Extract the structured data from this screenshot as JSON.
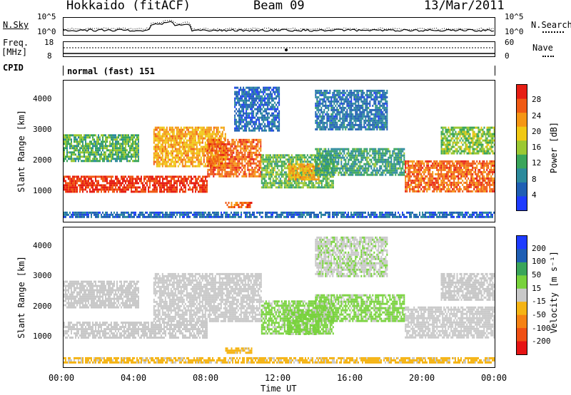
{
  "header": {
    "station": "Hokkaido (fitACF)",
    "beam": "Beam 09",
    "date": "13/Mar/2011"
  },
  "noise_panel": {
    "left_label": "N.Sky",
    "right_label": "N.Search",
    "left_ticks": [
      "10^5",
      "10^0"
    ],
    "right_ticks": [
      "10^5",
      "10^0"
    ]
  },
  "freq_panel": {
    "left_label": "Freq.",
    "left_unit": "[MHz]",
    "right_label": "Nave",
    "left_ticks": [
      "18",
      "8"
    ],
    "right_ticks": [
      "60",
      "0"
    ]
  },
  "cpid_panel": {
    "label": "CPID",
    "text": "normal (fast) 151"
  },
  "x_axis": {
    "label": "Time UT",
    "ticks": [
      "00:00",
      "04:00",
      "08:00",
      "12:00",
      "16:00",
      "20:00",
      "00:00"
    ]
  },
  "power_panel": {
    "ylabel": "Slant Range [km]",
    "yticks": [
      "1000",
      "2000",
      "3000",
      "4000"
    ],
    "colorbar_label": "Power [dB]",
    "colorbar_ticks": [
      "4",
      "8",
      "12",
      "16",
      "20",
      "24",
      "28"
    ]
  },
  "velocity_panel": {
    "ylabel": "Slant Range [km]",
    "yticks": [
      "1000",
      "2000",
      "3000",
      "4000"
    ],
    "colorbar_label": "Velocity [m s⁻¹]",
    "colorbar_ticks": [
      "200",
      "100",
      "50",
      "15",
      "-15",
      "-50",
      "-100",
      "-200"
    ]
  },
  "chart_data": [
    {
      "type": "heatmap",
      "title": "Power",
      "xlabel": "Time UT",
      "ylabel": "Slant Range [km]",
      "xlim": [
        0,
        24
      ],
      "ylim": [
        0,
        4600
      ],
      "colorbar": {
        "label": "Power [dB]",
        "range": [
          0,
          32
        ],
        "ticks": [
          4,
          8,
          12,
          16,
          20,
          24,
          28
        ],
        "colors": [
          "#1e3cff",
          "#1f5fb4",
          "#2c8a9c",
          "#3aa55a",
          "#9bc832",
          "#f0c814",
          "#f59614",
          "#f05a14",
          "#e61e14"
        ]
      },
      "regions": [
        {
          "t0": 0.0,
          "t1": 8.0,
          "r0": 950,
          "r1": 1500,
          "power": 29
        },
        {
          "t0": 0.0,
          "t1": 4.2,
          "r0": 1950,
          "r1": 2850,
          "power": 13
        },
        {
          "t0": 5.0,
          "t1": 9.0,
          "r0": 1800,
          "r1": 3100,
          "power": 22
        },
        {
          "t0": 8.0,
          "t1": 11.0,
          "r0": 1500,
          "r1": 2700,
          "power": 26
        },
        {
          "t0": 11.0,
          "t1": 15.0,
          "r0": 1100,
          "r1": 2200,
          "power": 14
        },
        {
          "t0": 12.5,
          "t1": 14.2,
          "r0": 1400,
          "r1": 1900,
          "power": 22
        },
        {
          "t0": 14.0,
          "t1": 19.0,
          "r0": 1500,
          "r1": 2400,
          "power": 11
        },
        {
          "t0": 14.0,
          "t1": 18.0,
          "r0": 3000,
          "r1": 4300,
          "power": 7
        },
        {
          "t0": 9.5,
          "t1": 12.0,
          "r0": 3000,
          "r1": 4400,
          "power": 6
        },
        {
          "t0": 19.0,
          "t1": 24.0,
          "r0": 1000,
          "r1": 2000,
          "power": 26
        },
        {
          "t0": 21.0,
          "t1": 24.0,
          "r0": 2200,
          "r1": 3100,
          "power": 15
        },
        {
          "t0": 9.0,
          "t1": 10.5,
          "r0": 500,
          "r1": 650,
          "power": 26
        },
        {
          "t0": 0.0,
          "t1": 24.0,
          "r0": 180,
          "r1": 330,
          "power": 6
        }
      ]
    },
    {
      "type": "heatmap",
      "title": "Velocity",
      "xlabel": "Time UT",
      "ylabel": "Slant Range [km]",
      "xlim": [
        0,
        24
      ],
      "ylim": [
        0,
        4600
      ],
      "colorbar": {
        "label": "Velocity [m s⁻¹]",
        "range": [
          -250,
          250
        ],
        "ticks": [
          200,
          100,
          50,
          15,
          -15,
          -50,
          -100,
          -200
        ],
        "colors": [
          "#1e3cff",
          "#1f5fb4",
          "#3aa55a",
          "#78d23c",
          "#c8c8c8",
          "#f5b414",
          "#f58214",
          "#f05014",
          "#e61414"
        ]
      },
      "regions": [
        {
          "t0": 0.0,
          "t1": 8.0,
          "r0": 950,
          "r1": 1500,
          "velocity": 0
        },
        {
          "t0": 0.0,
          "t1": 4.2,
          "r0": 1950,
          "r1": 2850,
          "velocity": 0
        },
        {
          "t0": 5.0,
          "t1": 11.0,
          "r0": 1500,
          "r1": 3100,
          "velocity": 0
        },
        {
          "t0": 11.0,
          "t1": 15.0,
          "r0": 1100,
          "r1": 2200,
          "velocity": 40
        },
        {
          "t0": 12.5,
          "t1": 14.2,
          "r0": 1100,
          "r1": 1900,
          "velocity": 40
        },
        {
          "t0": 14.0,
          "t1": 19.0,
          "r0": 1500,
          "r1": 2400,
          "velocity": 40
        },
        {
          "t0": 14.0,
          "t1": 18.0,
          "r0": 3000,
          "r1": 4300,
          "velocity": 20
        },
        {
          "t0": 19.0,
          "t1": 24.0,
          "r0": 1000,
          "r1": 2000,
          "velocity": 0
        },
        {
          "t0": 21.0,
          "t1": 24.0,
          "r0": 2200,
          "r1": 3100,
          "velocity": 0
        },
        {
          "t0": 9.0,
          "t1": 10.5,
          "r0": 500,
          "r1": 650,
          "velocity": -40
        },
        {
          "t0": 0.0,
          "t1": 24.0,
          "r0": 180,
          "r1": 330,
          "velocity": -40
        }
      ]
    }
  ]
}
